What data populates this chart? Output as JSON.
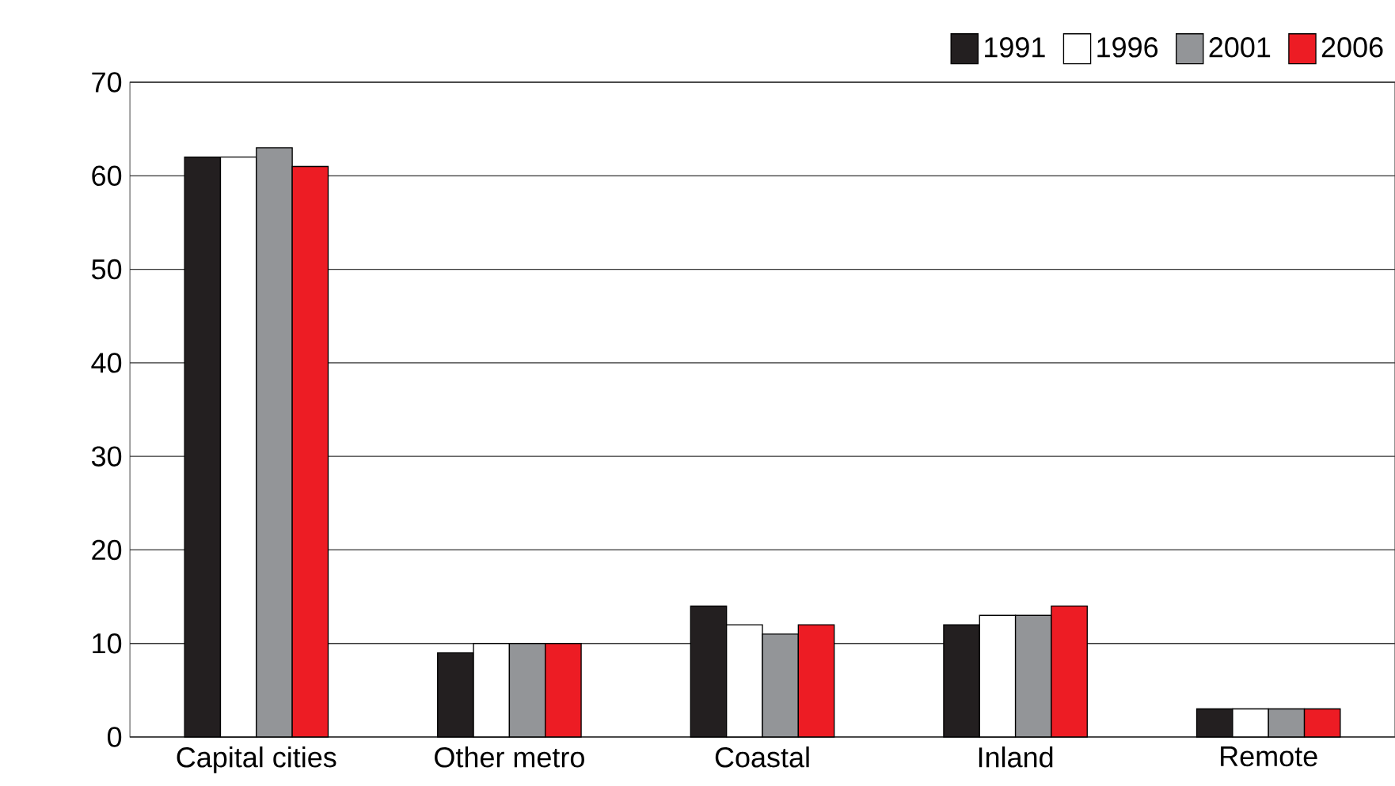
{
  "chart_data": {
    "type": "bar",
    "categories": [
      "Capital cities",
      "Other metro",
      "Coastal",
      "Inland",
      "Remote"
    ],
    "series": [
      {
        "name": "1991",
        "color": "#231f20",
        "values": [
          62,
          9,
          14,
          12,
          3
        ]
      },
      {
        "name": "1996",
        "color": "#ffffff",
        "values": [
          62,
          10,
          12,
          13,
          3
        ]
      },
      {
        "name": "2001",
        "color": "#939598",
        "values": [
          63,
          10,
          11,
          13,
          3
        ]
      },
      {
        "name": "2006",
        "color": "#ed1c24",
        "values": [
          61,
          10,
          12,
          14,
          3
        ]
      }
    ],
    "ylim": [
      0,
      70
    ],
    "yticks": [
      0,
      10,
      20,
      30,
      40,
      50,
      60,
      70
    ],
    "grid": "y",
    "legend": "top right"
  }
}
